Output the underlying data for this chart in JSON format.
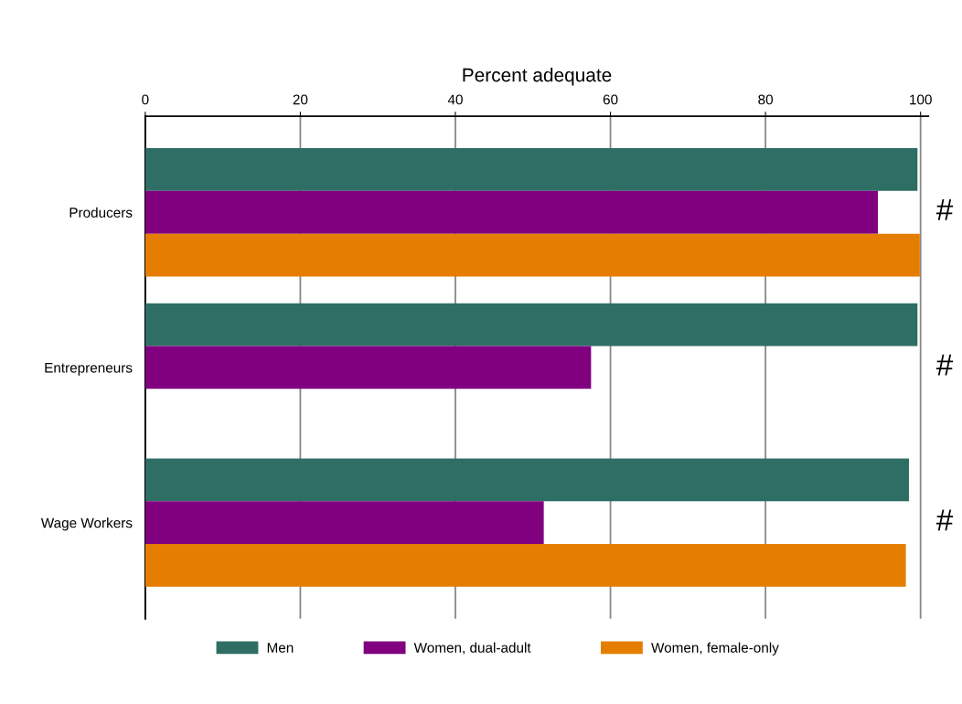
{
  "chart_data": {
    "type": "bar",
    "orientation": "horizontal",
    "xlabel": "Percent adequate",
    "categories": [
      "Producers",
      "Entrepreneurs",
      "Wage Workers"
    ],
    "series": [
      {
        "name": "Men",
        "color": "#2e6e65",
        "values": [
          99.6,
          99.6,
          98.5
        ]
      },
      {
        "name": "Women, dual-adult",
        "color": "#800080",
        "values": [
          94.5,
          57.5,
          51.4
        ]
      },
      {
        "name": "Women, female-only",
        "color": "#e57e00",
        "values": [
          99.9,
          null,
          98.1
        ]
      }
    ],
    "xlim": [
      0,
      101
    ],
    "xticks": [
      0,
      20,
      40,
      60,
      80,
      100
    ],
    "grid": "x",
    "legend": "bottom",
    "annotations": [
      "#",
      "#",
      "#"
    ]
  }
}
